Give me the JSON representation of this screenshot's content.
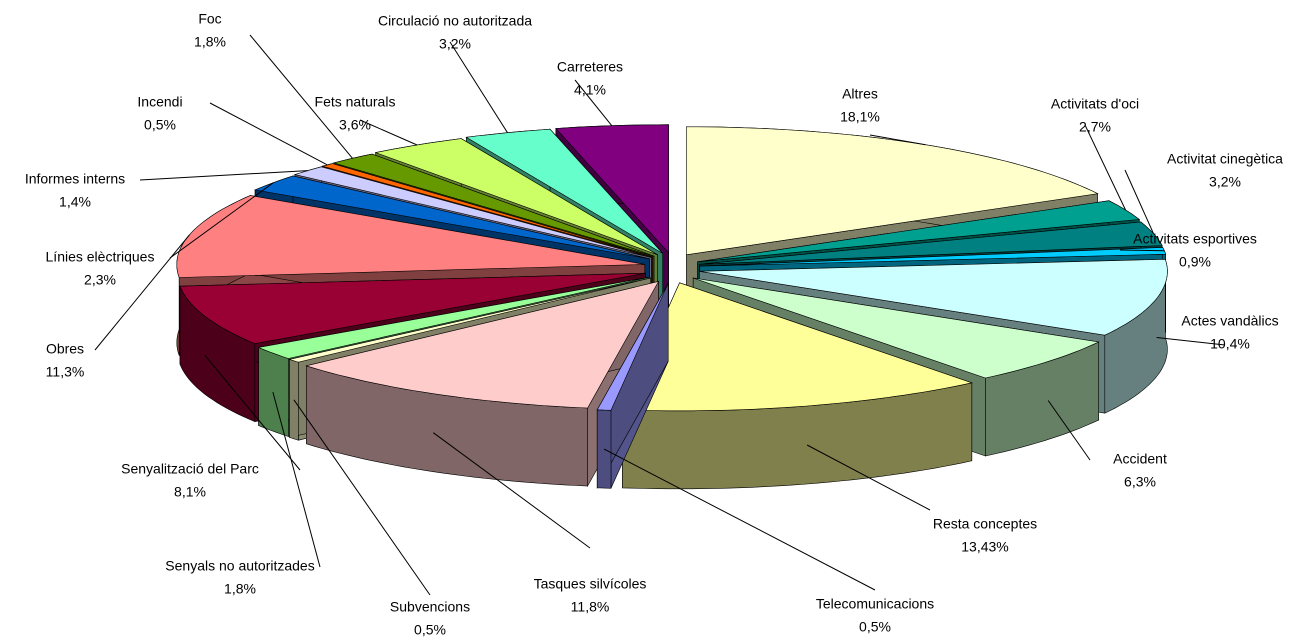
{
  "chart_data": {
    "type": "pie",
    "categories": [
      "Altres",
      "Activitats d'oci",
      "Activitat cinegètica",
      "Activitats esportives",
      "Actes vandàlics",
      "Accident",
      "Resta conceptes",
      "Telecomunicacions",
      "Tasques silvícoles",
      "Subvencions",
      "Senyals no autoritzades",
      "Senyalització del Parc",
      "Obres",
      "Línies elèctriques",
      "Informes interns",
      "Incendi",
      "Foc",
      "Fets naturals",
      "Circulació no autoritzada",
      "Carreteres"
    ],
    "values": [
      18.1,
      2.7,
      3.2,
      0.9,
      10.4,
      6.3,
      13.43,
      0.5,
      11.8,
      0.5,
      1.8,
      8.1,
      11.3,
      2.3,
      1.4,
      0.5,
      1.8,
      3.6,
      3.2,
      4.1
    ],
    "value_labels": [
      "18,1%",
      "2,7%",
      "3,2%",
      "0,9%",
      "10,4%",
      "6,3%",
      "13,43%",
      "0,5%",
      "11,8%",
      "0,5%",
      "1,8%",
      "8,1%",
      "11,3%",
      "2,3%",
      "1,4%",
      "0,5%",
      "1,8%",
      "3,6%",
      "3,2%",
      "4,1%"
    ],
    "colors": [
      "#ffffcc",
      "#00a090",
      "#008080",
      "#00ccff",
      "#ccffff",
      "#ccffcc",
      "#ffff99",
      "#9999ff",
      "#ffcccc",
      "#ffffcc",
      "#99ff99",
      "#990033",
      "#ff8080",
      "#0066cc",
      "#ccccff",
      "#ff6600",
      "#669900",
      "#ccff66",
      "#66ffcc",
      "#800080"
    ]
  }
}
